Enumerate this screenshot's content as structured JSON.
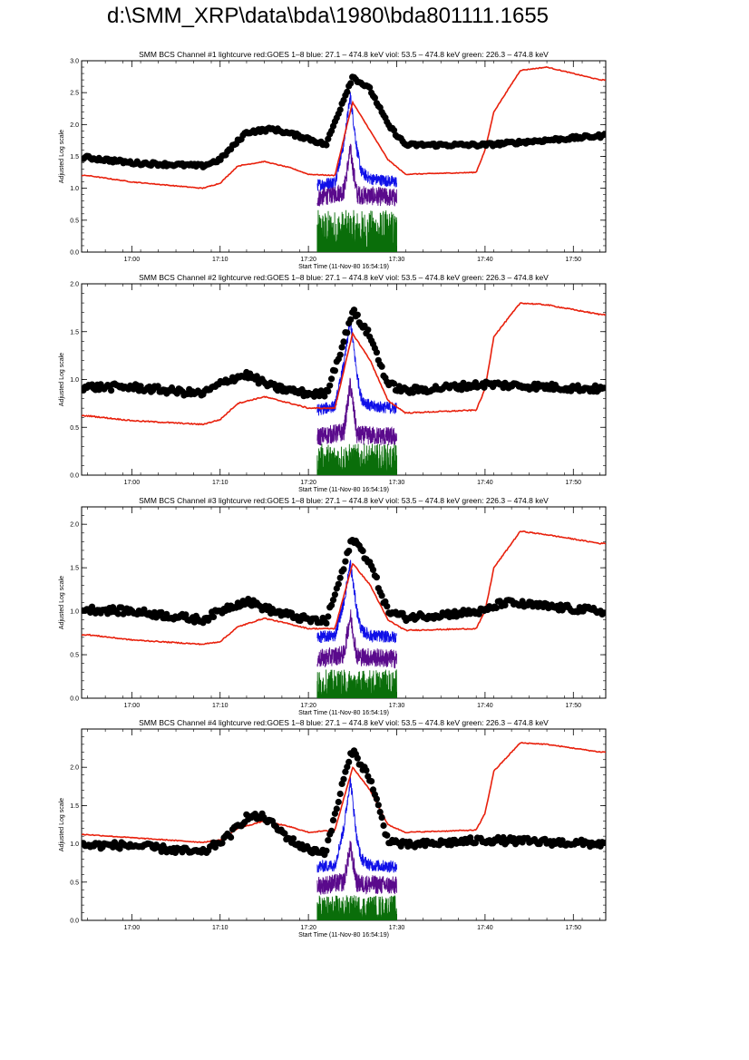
{
  "title": "d:\\SMM_XRP\\data\\bda\\1980\\bda801111.1655",
  "colors": {
    "goes": "#e8200c",
    "blue": "#1010e8",
    "viol": "#5a0a8c",
    "green": "#0a6e0a",
    "bcs": "#000000"
  },
  "chart_data": [
    {
      "type": "scatter",
      "title": "SMM BCS Channel #1 lightcurve  red:GOES 1–8  blue: 27.1 – 474.8 keV  viol: 53.5 – 474.8 keV  green: 226.3 – 474.8 keV",
      "xlabel": "Start Time (11-Nov-80 16:54:19)",
      "ylabel": "Adjusted Log scale",
      "xlim": [
        "16:54:19",
        "17:53:40"
      ],
      "ylim": [
        0,
        3.0
      ],
      "xticks": [
        "17:00",
        "17:10",
        "17:20",
        "17:30",
        "17:40",
        "17:50"
      ],
      "yticks": [
        "0.0",
        "0.5",
        "1.0",
        "1.5",
        "2.0",
        "2.5",
        "3.0"
      ],
      "bcs": {
        "x": [
          "16:55",
          "17:00",
          "17:08",
          "17:10",
          "17:13",
          "17:16",
          "17:20",
          "17:22",
          "17:24",
          "17:25",
          "17:27",
          "17:29",
          "17:31",
          "17:40",
          "17:53"
        ],
        "y": [
          1.48,
          1.4,
          1.35,
          1.45,
          1.88,
          1.93,
          1.78,
          1.68,
          2.4,
          2.75,
          2.55,
          2.0,
          1.68,
          1.68,
          1.82
        ]
      },
      "goes": {
        "x": [
          "16:55",
          "17:00",
          "17:08",
          "17:10",
          "17:12",
          "17:15",
          "17:18",
          "17:20",
          "17:23",
          "17:25",
          "17:27",
          "17:29",
          "17:31",
          "17:39",
          "17:40",
          "17:41",
          "17:44",
          "17:47",
          "17:53"
        ],
        "y": [
          1.2,
          1.1,
          1.0,
          1.08,
          1.35,
          1.42,
          1.32,
          1.22,
          1.2,
          2.35,
          1.9,
          1.45,
          1.22,
          1.25,
          1.6,
          2.2,
          2.85,
          2.9,
          2.7
        ]
      },
      "blue": {
        "x": [
          "17:21",
          "17:23",
          "17:24",
          "17:24:45",
          "17:25:30",
          "17:26",
          "17:27",
          "17:30"
        ],
        "y": [
          1.05,
          1.1,
          1.7,
          2.45,
          1.6,
          1.25,
          1.15,
          1.1
        ]
      },
      "viol": {
        "x": [
          "17:21",
          "17:24",
          "17:24:45",
          "17:25:30",
          "17:30"
        ],
        "y": [
          0.85,
          0.95,
          1.6,
          0.9,
          0.85
        ]
      },
      "green": {
        "x": [
          "17:21",
          "17:30"
        ],
        "y": [
          0.3,
          0.3
        ]
      }
    },
    {
      "type": "scatter",
      "title": "SMM BCS Channel #2 lightcurve  red:GOES 1–8  blue: 27.1 – 474.8 keV  viol: 53.5 – 474.8 keV  green: 226.3 – 474.8 keV",
      "xlabel": "Start Time (11-Nov-80 16:54:19)",
      "ylabel": "Adjusted Log scale",
      "xlim": [
        "16:54:19",
        "17:53:40"
      ],
      "ylim": [
        0,
        2.0
      ],
      "xticks": [
        "17:00",
        "17:10",
        "17:20",
        "17:30",
        "17:40",
        "17:50"
      ],
      "yticks": [
        "0.0",
        "0.5",
        "1.0",
        "1.5",
        "2.0"
      ],
      "bcs": {
        "x": [
          "16:55",
          "17:00",
          "17:08",
          "17:11",
          "17:13",
          "17:16",
          "17:20",
          "17:22",
          "17:24",
          "17:25",
          "17:27",
          "17:29",
          "17:31",
          "17:40",
          "17:53"
        ],
        "y": [
          0.92,
          0.92,
          0.85,
          1.0,
          1.05,
          0.92,
          0.85,
          0.85,
          1.4,
          1.72,
          1.45,
          0.95,
          0.88,
          0.95,
          0.9
        ]
      },
      "goes": {
        "x": [
          "16:55",
          "17:00",
          "17:08",
          "17:10",
          "17:12",
          "17:15",
          "17:18",
          "17:20",
          "17:23",
          "17:25",
          "17:27",
          "17:29",
          "17:31",
          "17:39",
          "17:40",
          "17:41",
          "17:44",
          "17:47",
          "17:53"
        ],
        "y": [
          0.62,
          0.57,
          0.53,
          0.58,
          0.75,
          0.82,
          0.75,
          0.7,
          0.7,
          1.48,
          1.2,
          0.78,
          0.65,
          0.68,
          0.9,
          1.45,
          1.8,
          1.78,
          1.68
        ]
      },
      "blue": {
        "x": [
          "17:21",
          "17:23",
          "17:24",
          "17:24:45",
          "17:25:30",
          "17:26",
          "17:27",
          "17:30"
        ],
        "y": [
          0.68,
          0.72,
          1.15,
          1.62,
          1.05,
          0.8,
          0.72,
          0.7
        ]
      },
      "viol": {
        "x": [
          "17:21",
          "17:24",
          "17:24:45",
          "17:25:30",
          "17:30"
        ],
        "y": [
          0.4,
          0.45,
          0.95,
          0.42,
          0.4
        ]
      },
      "green": {
        "x": [
          "17:21",
          "17:30"
        ],
        "y": [
          0.15,
          0.15
        ]
      }
    },
    {
      "type": "scatter",
      "title": "SMM BCS Channel #3 lightcurve  red:GOES 1–8  blue: 27.1 – 474.8 keV  viol: 53.5 – 474.8 keV  green: 226.3 – 474.8 keV",
      "xlabel": "Start Time (11-Nov-80 16:54:19)",
      "ylabel": "Adjusted Log scale",
      "xlim": [
        "16:54:19",
        "17:53:40"
      ],
      "ylim": [
        0,
        2.2
      ],
      "xticks": [
        "17:00",
        "17:10",
        "17:20",
        "17:30",
        "17:40",
        "17:50"
      ],
      "yticks": [
        "0.0",
        "0.5",
        "1.0",
        "1.5",
        "2.0"
      ],
      "bcs": {
        "x": [
          "16:55",
          "17:00",
          "17:08",
          "17:11",
          "17:13",
          "17:16",
          "17:20",
          "17:22",
          "17:24",
          "17:25",
          "17:27",
          "17:29",
          "17:31",
          "17:40",
          "17:42",
          "17:53"
        ],
        "y": [
          1.02,
          1.0,
          0.9,
          1.05,
          1.12,
          1.0,
          0.9,
          0.88,
          1.5,
          1.85,
          1.55,
          1.0,
          0.93,
          1.0,
          1.1,
          1.0
        ]
      },
      "goes": {
        "x": [
          "16:55",
          "17:00",
          "17:08",
          "17:10",
          "17:12",
          "17:15",
          "17:18",
          "17:20",
          "17:23",
          "17:25",
          "17:27",
          "17:29",
          "17:31",
          "17:39",
          "17:40",
          "17:41",
          "17:44",
          "17:47",
          "17:53"
        ],
        "y": [
          0.73,
          0.67,
          0.62,
          0.65,
          0.82,
          0.92,
          0.85,
          0.8,
          0.8,
          1.55,
          1.3,
          0.9,
          0.78,
          0.8,
          1.0,
          1.5,
          1.92,
          1.88,
          1.78
        ]
      },
      "blue": {
        "x": [
          "17:21",
          "17:23",
          "17:24",
          "17:24:45",
          "17:25:30",
          "17:26",
          "17:27",
          "17:30"
        ],
        "y": [
          0.7,
          0.72,
          1.1,
          1.55,
          1.0,
          0.78,
          0.72,
          0.7
        ]
      },
      "viol": {
        "x": [
          "17:21",
          "17:24",
          "17:24:45",
          "17:25:30",
          "17:30"
        ],
        "y": [
          0.45,
          0.5,
          0.95,
          0.48,
          0.45
        ]
      },
      "green": {
        "x": [
          "17:21",
          "17:30"
        ],
        "y": [
          0.15,
          0.15
        ]
      }
    },
    {
      "type": "scatter",
      "title": "SMM BCS Channel #4 lightcurve  red:GOES 1–8  blue: 27.1 – 474.8 keV  viol: 53.5 – 474.8 keV  green: 226.3 – 474.8 keV",
      "xlabel": "Start Time (11-Nov-80 16:54:19)",
      "ylabel": "Adjusted Log scale",
      "xlim": [
        "16:54:19",
        "17:53:40"
      ],
      "ylim": [
        0,
        2.5
      ],
      "xticks": [
        "17:00",
        "17:10",
        "17:20",
        "17:30",
        "17:40",
        "17:50"
      ],
      "yticks": [
        "0.0",
        "0.5",
        "1.0",
        "1.5",
        "2.0"
      ],
      "bcs": {
        "x": [
          "16:55",
          "17:00",
          "17:08",
          "17:11",
          "17:13",
          "17:15",
          "17:18",
          "17:20",
          "17:22",
          "17:24",
          "17:25",
          "17:27",
          "17:29",
          "17:31",
          "17:40",
          "17:53"
        ],
        "y": [
          0.98,
          0.98,
          0.88,
          1.1,
          1.35,
          1.35,
          1.05,
          0.92,
          0.9,
          1.85,
          2.22,
          1.85,
          1.05,
          0.98,
          1.05,
          1.0
        ]
      },
      "goes": {
        "x": [
          "16:55",
          "17:00",
          "17:08",
          "17:10",
          "17:12",
          "17:15",
          "17:18",
          "17:20",
          "17:23",
          "17:25",
          "17:27",
          "17:29",
          "17:31",
          "17:39",
          "17:40",
          "17:41",
          "17:44",
          "17:47",
          "17:53"
        ],
        "y": [
          1.12,
          1.08,
          1.02,
          1.05,
          1.2,
          1.3,
          1.22,
          1.15,
          1.18,
          2.0,
          1.7,
          1.25,
          1.15,
          1.18,
          1.4,
          1.95,
          2.32,
          2.3,
          2.2
        ]
      },
      "blue": {
        "x": [
          "17:21",
          "17:23",
          "17:24",
          "17:24:45",
          "17:25:30",
          "17:26",
          "17:27",
          "17:30"
        ],
        "y": [
          0.7,
          0.72,
          1.2,
          1.85,
          1.05,
          0.8,
          0.72,
          0.7
        ]
      },
      "viol": {
        "x": [
          "17:21",
          "17:24",
          "17:24:45",
          "17:25:30",
          "17:30"
        ],
        "y": [
          0.45,
          0.5,
          0.95,
          0.48,
          0.45
        ]
      },
      "green": {
        "x": [
          "17:21",
          "17:30"
        ],
        "y": [
          0.15,
          0.15
        ]
      }
    }
  ]
}
